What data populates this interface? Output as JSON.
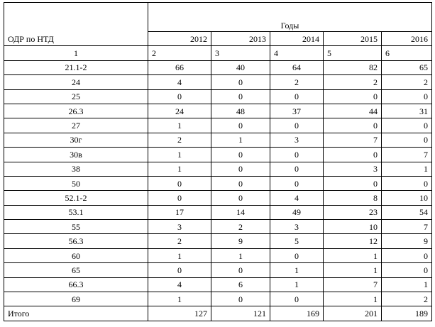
{
  "table": {
    "row_header": "ОДР по НТД",
    "group_header": "Годы",
    "years": [
      "2012",
      "2013",
      "2014",
      "2015",
      "2016"
    ],
    "column_numbers": [
      "1",
      "2",
      "3",
      "4",
      "5",
      "6"
    ],
    "rows": [
      [
        "21.1-2",
        66,
        40,
        64,
        82,
        65
      ],
      [
        "24",
        4,
        0,
        2,
        2,
        2
      ],
      [
        "25",
        0,
        0,
        0,
        0,
        0
      ],
      [
        "26.3",
        24,
        48,
        37,
        44,
        31
      ],
      [
        "27",
        1,
        0,
        0,
        0,
        0
      ],
      [
        "30г",
        2,
        1,
        3,
        7,
        0
      ],
      [
        "30в",
        1,
        0,
        0,
        0,
        7
      ],
      [
        "38",
        1,
        0,
        0,
        3,
        1
      ],
      [
        "50",
        0,
        0,
        0,
        0,
        0
      ],
      [
        "52.1-2",
        0,
        0,
        4,
        8,
        10
      ],
      [
        "53.1",
        17,
        14,
        49,
        23,
        54
      ],
      [
        "55",
        3,
        2,
        3,
        10,
        7
      ],
      [
        "56.3",
        2,
        9,
        5,
        12,
        9
      ],
      [
        "60",
        1,
        1,
        0,
        1,
        0
      ],
      [
        "65",
        0,
        0,
        1,
        1,
        0
      ],
      [
        "66.3",
        4,
        6,
        1,
        7,
        1
      ],
      [
        "69",
        1,
        0,
        0,
        1,
        2
      ]
    ],
    "total": [
      "Итого",
      127,
      121,
      169,
      201,
      189
    ]
  }
}
